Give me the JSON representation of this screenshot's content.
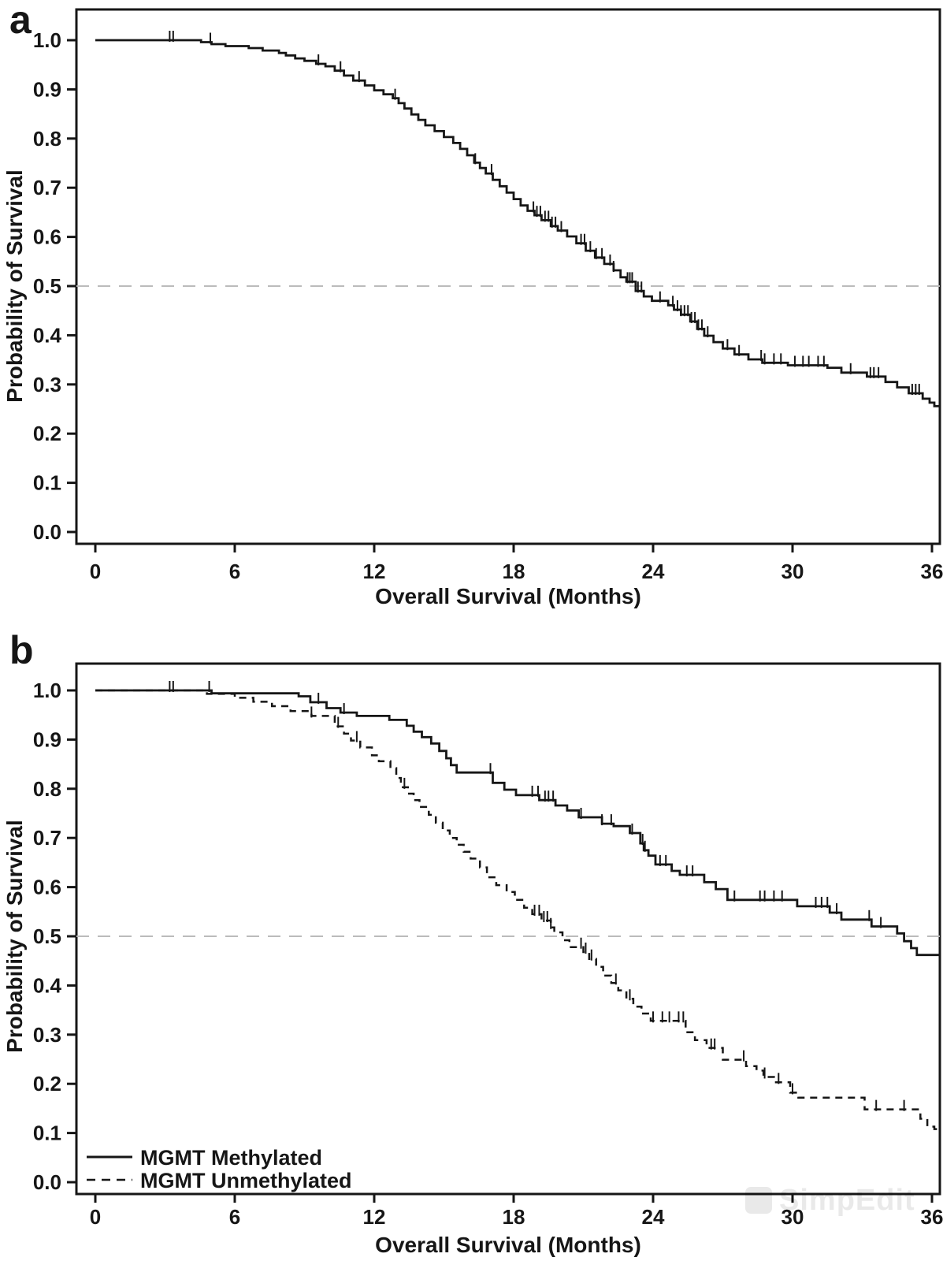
{
  "figure": {
    "background": "#ffffff"
  },
  "panels": [
    {
      "letter": "a"
    },
    {
      "letter": "b"
    }
  ],
  "watermark": {
    "text": "SimpEdit"
  },
  "colors": {
    "curve": "#161616",
    "axis": "#161616",
    "text": "#161616",
    "gridline": "#bbbbbb"
  },
  "chart_data": [
    {
      "panel": "a",
      "type": "line",
      "subtype": "kaplan-meier-step",
      "xlabel": "Overall Survival (Months)",
      "ylabel": "Probability of Survival",
      "xlim": [
        0,
        36.4
      ],
      "ylim": [
        0,
        1.0
      ],
      "xticks": [
        "0",
        "6",
        "12",
        "18",
        "24",
        "30",
        "36"
      ],
      "yticks": [
        "0.0",
        "0.1",
        "0.2",
        "0.3",
        "0.4",
        "0.5",
        "0.6",
        "0.7",
        "0.8",
        "0.9",
        "1.0"
      ],
      "grid": false,
      "reference_line_y": 0.5,
      "legend_position": "none",
      "series": [
        {
          "line": "solid",
          "steps": [
            [
              0,
              1.0
            ],
            [
              4.55,
              0.996
            ],
            [
              5.0,
              0.992
            ],
            [
              5.6,
              0.988
            ],
            [
              6.6,
              0.984
            ],
            [
              7.2,
              0.979
            ],
            [
              7.9,
              0.974
            ],
            [
              8.2,
              0.969
            ],
            [
              8.6,
              0.963
            ],
            [
              9.0,
              0.958
            ],
            [
              9.5,
              0.952
            ],
            [
              9.9,
              0.947
            ],
            [
              10.3,
              0.938
            ],
            [
              10.7,
              0.928
            ],
            [
              11.1,
              0.918
            ],
            [
              11.6,
              0.908
            ],
            [
              12.0,
              0.898
            ],
            [
              12.4,
              0.89
            ],
            [
              12.8,
              0.882
            ],
            [
              13.05,
              0.872
            ],
            [
              13.3,
              0.861
            ],
            [
              13.6,
              0.849
            ],
            [
              13.9,
              0.838
            ],
            [
              14.2,
              0.827
            ],
            [
              14.6,
              0.815
            ],
            [
              15.0,
              0.803
            ],
            [
              15.4,
              0.791
            ],
            [
              15.7,
              0.779
            ],
            [
              16.0,
              0.766
            ],
            [
              16.3,
              0.751
            ],
            [
              16.55,
              0.74
            ],
            [
              16.8,
              0.729
            ],
            [
              17.1,
              0.716
            ],
            [
              17.4,
              0.703
            ],
            [
              17.7,
              0.69
            ],
            [
              18.0,
              0.677
            ],
            [
              18.3,
              0.664
            ],
            [
              18.6,
              0.653
            ],
            [
              18.9,
              0.644
            ],
            [
              19.2,
              0.634
            ],
            [
              19.6,
              0.622
            ],
            [
              19.9,
              0.613
            ],
            [
              20.3,
              0.601
            ],
            [
              20.7,
              0.587
            ],
            [
              21.1,
              0.572
            ],
            [
              21.5,
              0.558
            ],
            [
              21.9,
              0.545
            ],
            [
              22.3,
              0.532
            ],
            [
              22.6,
              0.518
            ],
            [
              22.85,
              0.509
            ],
            [
              23.25,
              0.49
            ],
            [
              23.6,
              0.479
            ],
            [
              23.95,
              0.47
            ],
            [
              24.65,
              0.461
            ],
            [
              24.9,
              0.452
            ],
            [
              25.2,
              0.442
            ],
            [
              25.6,
              0.428
            ],
            [
              25.9,
              0.413
            ],
            [
              26.2,
              0.399
            ],
            [
              26.6,
              0.386
            ],
            [
              27.0,
              0.373
            ],
            [
              27.5,
              0.361
            ],
            [
              28.1,
              0.351
            ],
            [
              28.7,
              0.344
            ],
            [
              29.8,
              0.339
            ],
            [
              31.5,
              0.334
            ],
            [
              32.1,
              0.324
            ],
            [
              33.2,
              0.316
            ],
            [
              34.0,
              0.305
            ],
            [
              34.5,
              0.294
            ],
            [
              35.0,
              0.282
            ],
            [
              35.6,
              0.271
            ],
            [
              35.9,
              0.263
            ],
            [
              36.1,
              0.256
            ]
          ],
          "end_time": 36.32,
          "censor_times": [
            3.2,
            3.35,
            4.95,
            9.6,
            10.55,
            11.35,
            12.9,
            16.35,
            17.05,
            18.85,
            19.0,
            19.15,
            19.35,
            19.5,
            19.65,
            19.8,
            20.05,
            20.9,
            21.05,
            21.3,
            21.55,
            21.8,
            22.15,
            22.3,
            22.9,
            23.0,
            23.1,
            23.35,
            23.5,
            24.3,
            24.85,
            25.05,
            25.2,
            25.35,
            25.5,
            25.65,
            25.8,
            25.95,
            26.1,
            26.35,
            27.2,
            27.7,
            28.65,
            28.8,
            29.2,
            29.5,
            30.1,
            30.45,
            30.7,
            31.1,
            31.35,
            32.5,
            33.35,
            33.5,
            33.7,
            35.15,
            35.3,
            35.45
          ]
        }
      ]
    },
    {
      "panel": "b",
      "type": "line",
      "subtype": "kaplan-meier-step",
      "xlabel": "Overall Survival (Months)",
      "ylabel": "Probability of Survival",
      "xlim": [
        0,
        36.4
      ],
      "ylim": [
        0,
        1.0
      ],
      "xticks": [
        "0",
        "6",
        "12",
        "18",
        "24",
        "30",
        "36"
      ],
      "yticks": [
        "0.0",
        "0.1",
        "0.2",
        "0.3",
        "0.4",
        "0.5",
        "0.6",
        "0.7",
        "0.8",
        "0.9",
        "1.0"
      ],
      "grid": false,
      "reference_line_y": 0.5,
      "legend_position": "bottom-left",
      "series": [
        {
          "name": "MGMT Methylated",
          "line": "solid",
          "steps": [
            [
              0,
              1.0
            ],
            [
              5.0,
              0.994
            ],
            [
              8.75,
              0.988
            ],
            [
              9.25,
              0.976
            ],
            [
              9.95,
              0.964
            ],
            [
              10.55,
              0.955
            ],
            [
              11.25,
              0.948
            ],
            [
              12.65,
              0.94
            ],
            [
              13.4,
              0.928
            ],
            [
              13.7,
              0.916
            ],
            [
              14.05,
              0.905
            ],
            [
              14.45,
              0.892
            ],
            [
              14.8,
              0.877
            ],
            [
              15.1,
              0.862
            ],
            [
              15.3,
              0.848
            ],
            [
              15.55,
              0.833
            ],
            [
              17.1,
              0.812
            ],
            [
              17.6,
              0.798
            ],
            [
              18.1,
              0.787
            ],
            [
              19.1,
              0.777
            ],
            [
              19.8,
              0.766
            ],
            [
              20.3,
              0.756
            ],
            [
              20.8,
              0.742
            ],
            [
              21.8,
              0.729
            ],
            [
              22.3,
              0.724
            ],
            [
              23.0,
              0.71
            ],
            [
              23.45,
              0.689
            ],
            [
              23.6,
              0.675
            ],
            [
              23.8,
              0.664
            ],
            [
              24.1,
              0.646
            ],
            [
              24.8,
              0.633
            ],
            [
              25.15,
              0.625
            ],
            [
              26.2,
              0.61
            ],
            [
              26.7,
              0.596
            ],
            [
              27.2,
              0.574
            ],
            [
              30.2,
              0.561
            ],
            [
              31.6,
              0.548
            ],
            [
              32.1,
              0.534
            ],
            [
              33.4,
              0.52
            ],
            [
              34.5,
              0.506
            ],
            [
              34.8,
              0.49
            ],
            [
              35.1,
              0.476
            ],
            [
              35.35,
              0.462
            ]
          ],
          "end_time": 36.32,
          "censor_times": [
            3.2,
            3.35,
            4.9,
            9.6,
            10.7,
            17.0,
            18.8,
            19.05,
            19.35,
            19.5,
            19.7,
            20.9,
            21.8,
            22.2,
            23.1,
            23.55,
            23.65,
            24.3,
            24.55,
            25.45,
            25.7,
            27.5,
            28.6,
            28.8,
            29.2,
            29.55,
            31.0,
            31.25,
            31.5,
            31.9,
            33.3,
            33.8
          ]
        },
        {
          "name": "MGMT Unmethylated",
          "line": "dashed",
          "steps": [
            [
              0,
              1.0
            ],
            [
              4.8,
              0.993
            ],
            [
              6.0,
              0.985
            ],
            [
              6.8,
              0.977
            ],
            [
              7.6,
              0.968
            ],
            [
              8.4,
              0.958
            ],
            [
              9.3,
              0.948
            ],
            [
              10.3,
              0.927
            ],
            [
              10.7,
              0.912
            ],
            [
              11.0,
              0.898
            ],
            [
              11.4,
              0.884
            ],
            [
              11.9,
              0.868
            ],
            [
              12.2,
              0.856
            ],
            [
              12.7,
              0.842
            ],
            [
              12.95,
              0.822
            ],
            [
              13.15,
              0.803
            ],
            [
              13.45,
              0.79
            ],
            [
              13.7,
              0.777
            ],
            [
              13.95,
              0.763
            ],
            [
              14.35,
              0.747
            ],
            [
              14.65,
              0.731
            ],
            [
              14.95,
              0.715
            ],
            [
              15.25,
              0.7
            ],
            [
              15.55,
              0.686
            ],
            [
              15.85,
              0.672
            ],
            [
              16.15,
              0.658
            ],
            [
              16.55,
              0.64
            ],
            [
              16.85,
              0.62
            ],
            [
              17.25,
              0.604
            ],
            [
              17.7,
              0.59
            ],
            [
              18.05,
              0.574
            ],
            [
              18.45,
              0.558
            ],
            [
              18.8,
              0.545
            ],
            [
              19.2,
              0.532
            ],
            [
              19.6,
              0.518
            ],
            [
              19.75,
              0.508
            ],
            [
              20.1,
              0.492
            ],
            [
              20.4,
              0.478
            ],
            [
              21.0,
              0.468
            ],
            [
              21.25,
              0.454
            ],
            [
              21.55,
              0.438
            ],
            [
              21.85,
              0.42
            ],
            [
              22.2,
              0.405
            ],
            [
              22.5,
              0.39
            ],
            [
              22.85,
              0.373
            ],
            [
              23.15,
              0.357
            ],
            [
              23.5,
              0.343
            ],
            [
              23.9,
              0.328
            ],
            [
              25.4,
              0.305
            ],
            [
              25.8,
              0.289
            ],
            [
              26.3,
              0.273
            ],
            [
              27.0,
              0.249
            ],
            [
              28.0,
              0.236
            ],
            [
              28.45,
              0.227
            ],
            [
              28.75,
              0.214
            ],
            [
              29.2,
              0.203
            ],
            [
              29.9,
              0.182
            ],
            [
              30.25,
              0.172
            ],
            [
              33.1,
              0.148
            ],
            [
              35.5,
              0.129
            ],
            [
              35.8,
              0.113
            ],
            [
              36.1,
              0.108
            ]
          ],
          "end_time": 36.32,
          "censor_times": [
            9.3,
            10.45,
            11.25,
            13.3,
            18.9,
            19.1,
            19.3,
            19.45,
            19.6,
            20.9,
            21.1,
            21.35,
            22.4,
            23.0,
            24.0,
            24.4,
            24.7,
            25.1,
            25.3,
            26.5,
            26.65,
            27.9,
            28.8,
            29.4,
            30.0,
            33.6,
            34.8
          ]
        }
      ]
    }
  ]
}
